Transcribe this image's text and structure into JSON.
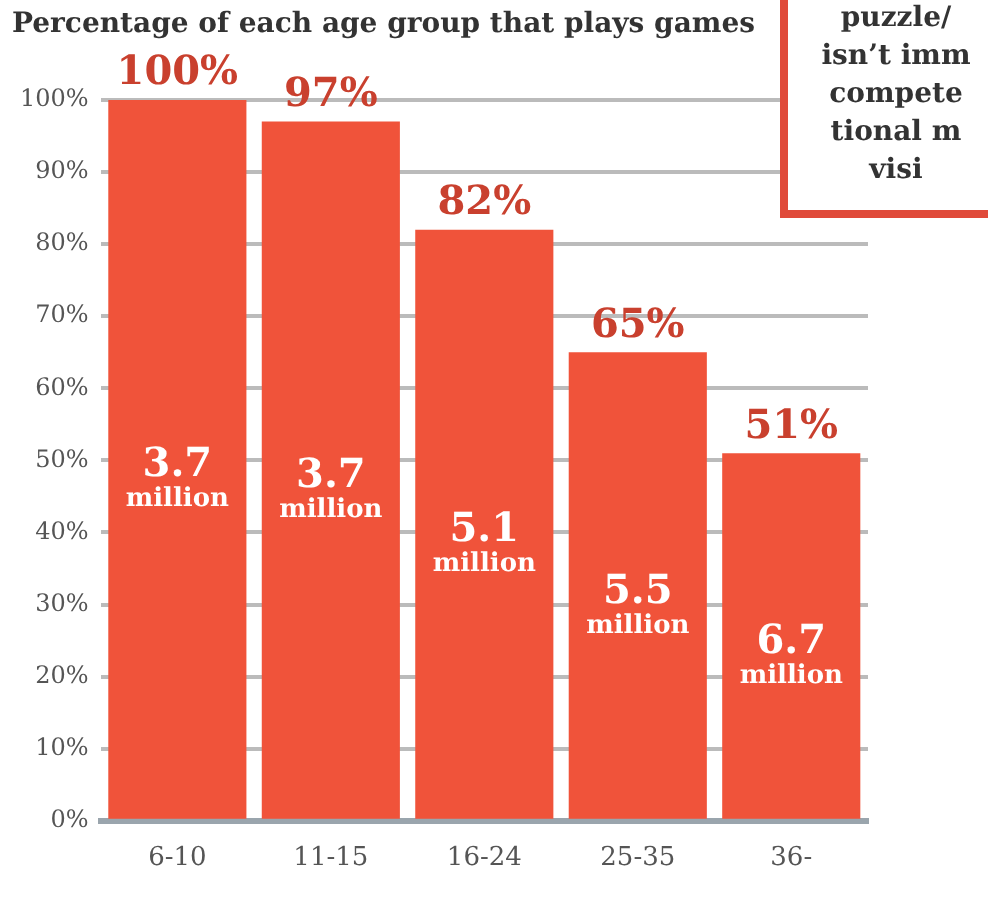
{
  "chart_data": {
    "type": "bar",
    "title": "Percentage of each age group that plays games",
    "categories": [
      "6-10",
      "11-15",
      "16-24",
      "25-35",
      "36-"
    ],
    "values": [
      100,
      97,
      82,
      65,
      51
    ],
    "color": "#f0533a",
    "ylim": [
      0,
      100
    ],
    "yticks": [
      {
        "value": 0,
        "label": "0%"
      },
      {
        "value": 10,
        "label": "10%"
      },
      {
        "value": 20,
        "label": "20%"
      },
      {
        "value": 30,
        "label": "30%"
      },
      {
        "value": 40,
        "label": "40%"
      },
      {
        "value": 50,
        "label": "50%"
      },
      {
        "value": 60,
        "label": "60%"
      },
      {
        "value": 70,
        "label": "70%"
      },
      {
        "value": 80,
        "label": "80%"
      },
      {
        "value": 90,
        "label": "90%"
      },
      {
        "value": 100,
        "label": "100%"
      }
    ],
    "grid": "y",
    "legend": false,
    "value_labels": [
      "100%",
      "97%",
      "82%",
      "65%",
      "51%"
    ],
    "annotations": [
      "3.7 million",
      "3.7 million",
      "5.1 million",
      "5.5 million",
      "6.7 million",
      "puzzle/\nisn’t imm\ncompete\ntional m\nvisi"
    ]
  }
}
